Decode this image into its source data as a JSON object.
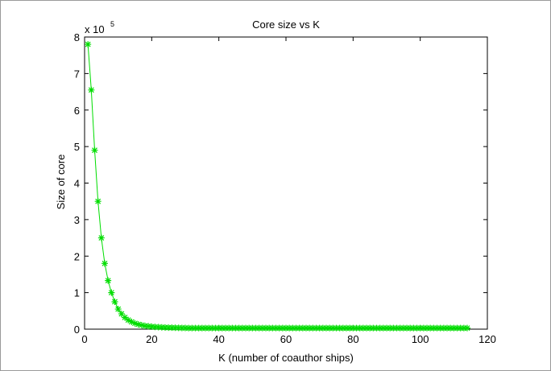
{
  "chart_data": {
    "type": "line",
    "title": "Core size vs K",
    "xlabel": "K (number of coauthor ships)",
    "ylabel": "Size of core",
    "y_multiplier_text": "x 10",
    "y_multiplier_exponent": "5",
    "xlim": [
      0,
      120
    ],
    "ylim": [
      0,
      8
    ],
    "y_scale_factor": 100000,
    "x_ticks": [
      0,
      20,
      40,
      60,
      80,
      100,
      120
    ],
    "y_ticks": [
      0,
      1,
      2,
      3,
      4,
      5,
      6,
      7,
      8
    ],
    "grid": false,
    "legend": "none",
    "series": [
      {
        "color": "#00dd00",
        "marker": "asterisk",
        "x": [
          1,
          2,
          3,
          4,
          5,
          6,
          7,
          8,
          9,
          10,
          11,
          12,
          13,
          14,
          15,
          16,
          17,
          18,
          19,
          20,
          21,
          22,
          23,
          24,
          25,
          26,
          27,
          28,
          29,
          30,
          31,
          32,
          33,
          34,
          35,
          36,
          37,
          38,
          39,
          40,
          41,
          42,
          43,
          44,
          45,
          46,
          47,
          48,
          49,
          50,
          51,
          52,
          53,
          54,
          55,
          56,
          57,
          58,
          59,
          60,
          61,
          62,
          63,
          64,
          65,
          66,
          67,
          68,
          69,
          70,
          71,
          72,
          73,
          74,
          75,
          76,
          77,
          78,
          79,
          80,
          81,
          82,
          83,
          84,
          85,
          86,
          87,
          88,
          89,
          90,
          91,
          92,
          93,
          94,
          95,
          96,
          97,
          98,
          99,
          100,
          101,
          102,
          103,
          104,
          105,
          106,
          107,
          108,
          109,
          110,
          111,
          112,
          113,
          114
        ],
        "y": [
          7.8,
          6.55,
          4.9,
          3.5,
          2.5,
          1.8,
          1.33,
          1.0,
          0.75,
          0.55,
          0.42,
          0.32,
          0.25,
          0.2,
          0.16,
          0.13,
          0.11,
          0.09,
          0.08,
          0.07,
          0.06,
          0.055,
          0.05,
          0.045,
          0.042,
          0.04,
          0.038,
          0.036,
          0.034,
          0.032,
          0.03,
          0.03,
          0.03,
          0.03,
          0.03,
          0.03,
          0.03,
          0.03,
          0.03,
          0.03,
          0.03,
          0.03,
          0.03,
          0.03,
          0.03,
          0.03,
          0.03,
          0.03,
          0.03,
          0.03,
          0.03,
          0.03,
          0.03,
          0.03,
          0.03,
          0.03,
          0.03,
          0.03,
          0.03,
          0.03,
          0.03,
          0.03,
          0.03,
          0.03,
          0.03,
          0.03,
          0.03,
          0.03,
          0.03,
          0.03,
          0.03,
          0.03,
          0.03,
          0.03,
          0.03,
          0.03,
          0.03,
          0.03,
          0.03,
          0.03,
          0.03,
          0.03,
          0.03,
          0.03,
          0.03,
          0.03,
          0.03,
          0.03,
          0.03,
          0.03,
          0.03,
          0.03,
          0.03,
          0.03,
          0.03,
          0.03,
          0.03,
          0.03,
          0.03,
          0.03,
          0.03,
          0.03,
          0.03,
          0.03,
          0.03,
          0.03,
          0.03,
          0.03,
          0.03,
          0.03,
          0.03,
          0.03,
          0.03,
          0.03
        ]
      }
    ]
  }
}
